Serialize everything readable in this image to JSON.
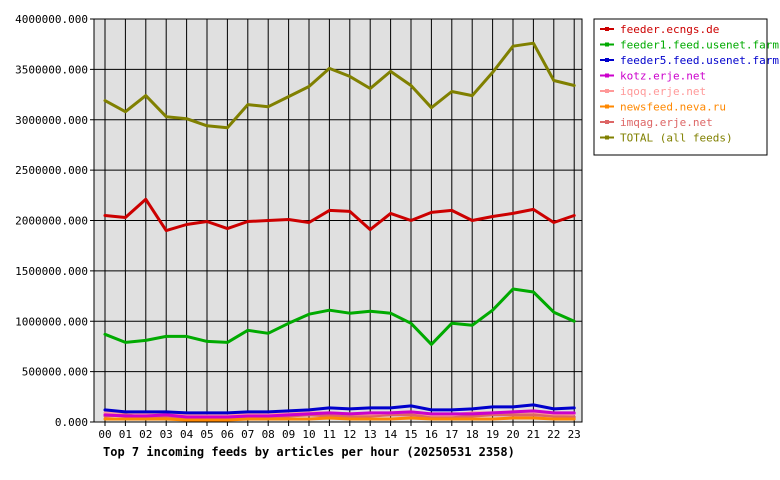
{
  "chart_data": {
    "type": "line",
    "title": "Top 7 incoming feeds by articles per hour (20250531 2358)",
    "categories": [
      "00",
      "01",
      "02",
      "03",
      "04",
      "05",
      "06",
      "07",
      "08",
      "09",
      "10",
      "11",
      "12",
      "13",
      "14",
      "15",
      "16",
      "17",
      "18",
      "19",
      "20",
      "21",
      "22",
      "23"
    ],
    "ylim": [
      0,
      4000000
    ],
    "yticks": [
      0,
      500000,
      1000000,
      1500000,
      2000000,
      2500000,
      3000000,
      3500000,
      4000000
    ],
    "ytick_labels": [
      "0.000",
      "500000.000",
      "1000000.000",
      "1500000.000",
      "2000000.000",
      "2500000.000",
      "3000000.000",
      "3500000.000",
      "4000000.000"
    ],
    "grid": true,
    "legend_position": "right",
    "series": [
      {
        "name": "feeder.ecngs.de",
        "color": "#cc0000",
        "values": [
          2050000,
          2030000,
          2210000,
          1900000,
          1960000,
          1990000,
          1920000,
          1990000,
          2000000,
          2010000,
          1980000,
          2100000,
          2090000,
          1910000,
          2070000,
          2000000,
          2080000,
          2100000,
          2000000,
          2040000,
          2070000,
          2110000,
          1980000,
          2050000
        ]
      },
      {
        "name": "feeder1.feed.usenet.farm",
        "color": "#00aa00",
        "values": [
          870000,
          790000,
          810000,
          850000,
          850000,
          800000,
          790000,
          910000,
          880000,
          980000,
          1070000,
          1110000,
          1080000,
          1100000,
          1080000,
          980000,
          770000,
          980000,
          960000,
          1110000,
          1320000,
          1290000,
          1090000,
          1000000
        ]
      },
      {
        "name": "feeder5.feed.usenet.farm",
        "color": "#0000cc",
        "values": [
          120000,
          100000,
          100000,
          100000,
          90000,
          90000,
          90000,
          100000,
          100000,
          110000,
          120000,
          140000,
          130000,
          140000,
          140000,
          160000,
          120000,
          120000,
          130000,
          150000,
          150000,
          170000,
          130000,
          140000
        ]
      },
      {
        "name": "kotz.erje.net",
        "color": "#cc00cc",
        "values": [
          70000,
          60000,
          60000,
          70000,
          50000,
          50000,
          50000,
          60000,
          60000,
          70000,
          80000,
          90000,
          80000,
          90000,
          90000,
          100000,
          80000,
          80000,
          80000,
          90000,
          100000,
          110000,
          90000,
          90000
        ]
      },
      {
        "name": "iqoq.erje.net",
        "color": "#ff9999",
        "values": [
          90000,
          100000,
          80000,
          90000,
          70000,
          60000,
          60000,
          80000,
          70000,
          80000,
          90000,
          90000,
          80000,
          80000,
          90000,
          100000,
          70000,
          70000,
          90000,
          90000,
          100000,
          100000,
          80000,
          80000
        ]
      },
      {
        "name": "newsfeed.neva.ru",
        "color": "#ff8800",
        "values": [
          30000,
          30000,
          30000,
          30000,
          20000,
          20000,
          20000,
          30000,
          30000,
          30000,
          30000,
          40000,
          30000,
          30000,
          30000,
          40000,
          30000,
          30000,
          30000,
          30000,
          40000,
          40000,
          30000,
          30000
        ]
      },
      {
        "name": "imqag.erje.net",
        "color": "#dd6666",
        "values": [
          60000,
          70000,
          50000,
          60000,
          40000,
          40000,
          40000,
          50000,
          50000,
          60000,
          70000,
          60000,
          60000,
          60000,
          70000,
          70000,
          50000,
          50000,
          60000,
          70000,
          70000,
          70000,
          60000,
          50000
        ]
      },
      {
        "name": "TOTAL (all feeds)",
        "color": "#808000",
        "values": [
          3190000,
          3080000,
          3240000,
          3030000,
          3010000,
          2940000,
          2920000,
          3150000,
          3130000,
          3230000,
          3330000,
          3510000,
          3430000,
          3310000,
          3480000,
          3340000,
          3120000,
          3280000,
          3240000,
          3470000,
          3730000,
          3760000,
          3390000,
          3340000
        ]
      }
    ]
  }
}
